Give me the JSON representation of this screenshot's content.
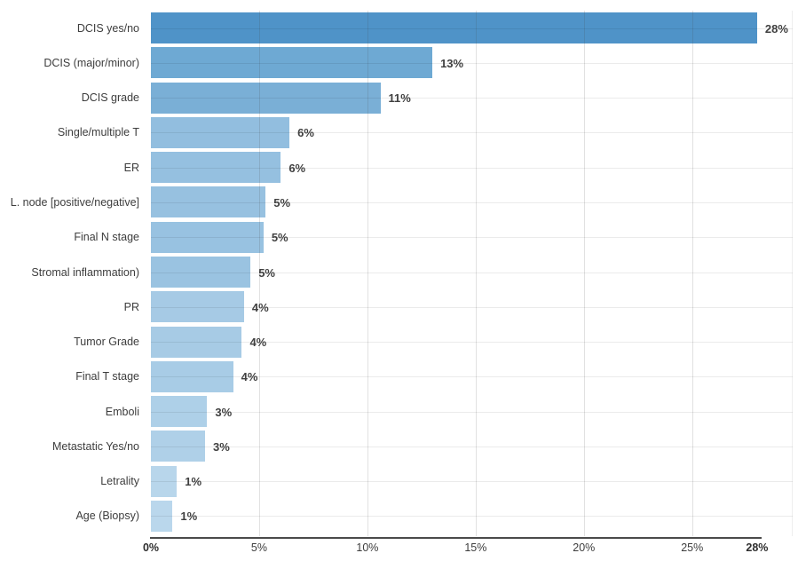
{
  "chart_data": {
    "type": "bar",
    "orientation": "horizontal",
    "title": "",
    "xlabel": "",
    "ylabel": "",
    "categories": [
      "DCIS yes/no",
      "DCIS (major/minor)",
      "DCIS grade",
      "Single/multiple T",
      "ER",
      "L. node [positive/negative]",
      "Final N stage",
      "Stromal inflammation)",
      "PR",
      "Tumor Grade",
      "Final T stage",
      "Emboli",
      "Metastatic Yes/no",
      "Letrality",
      "Age (Biopsy)"
    ],
    "values": [
      28,
      13,
      11,
      6,
      6,
      5,
      5,
      5,
      4,
      4,
      4,
      3,
      3,
      1,
      1
    ],
    "value_labels": [
      "28%",
      "13%",
      "11%",
      "6%",
      "6%",
      "5%",
      "5%",
      "5%",
      "4%",
      "4%",
      "4%",
      "3%",
      "3%",
      "1%",
      "1%"
    ],
    "bar_lengths_pct": [
      28,
      13,
      10.6,
      6.4,
      6.0,
      5.3,
      5.2,
      4.6,
      4.3,
      4.2,
      3.8,
      2.6,
      2.5,
      1.2,
      1.0
    ],
    "bar_colors": [
      "#4f93c8",
      "#6ea9d3",
      "#7aafd6",
      "#92bedf",
      "#95c0e0",
      "#97c1e0",
      "#98c2e1",
      "#9ac3e1",
      "#a6cae5",
      "#a7cbe5",
      "#a8cce6",
      "#aed0e8",
      "#afd0e8",
      "#b8d6eb",
      "#bad7ec"
    ],
    "x_ticks": [
      {
        "label": "0%",
        "pct": 0,
        "bold": true
      },
      {
        "label": "5%",
        "pct": 5,
        "bold": false
      },
      {
        "label": "10%",
        "pct": 10,
        "bold": false
      },
      {
        "label": "15%",
        "pct": 15,
        "bold": false
      },
      {
        "label": "20%",
        "pct": 20,
        "bold": false
      },
      {
        "label": "25%",
        "pct": 25,
        "bold": false
      },
      {
        "label": "28%",
        "pct": 28,
        "bold": true
      }
    ],
    "x_range_pct": [
      0,
      29.6
    ],
    "grid": {
      "vertical_at_pct": [
        5,
        10,
        15,
        20,
        25
      ],
      "horizontal": "category-centers",
      "legend": "none"
    },
    "colors": {
      "axis_line": "#4a4a4a",
      "tick_text": "#3d3d3d",
      "category_text": "#3d3d3d",
      "value_text": "#404040",
      "background": "#ffffff"
    }
  }
}
